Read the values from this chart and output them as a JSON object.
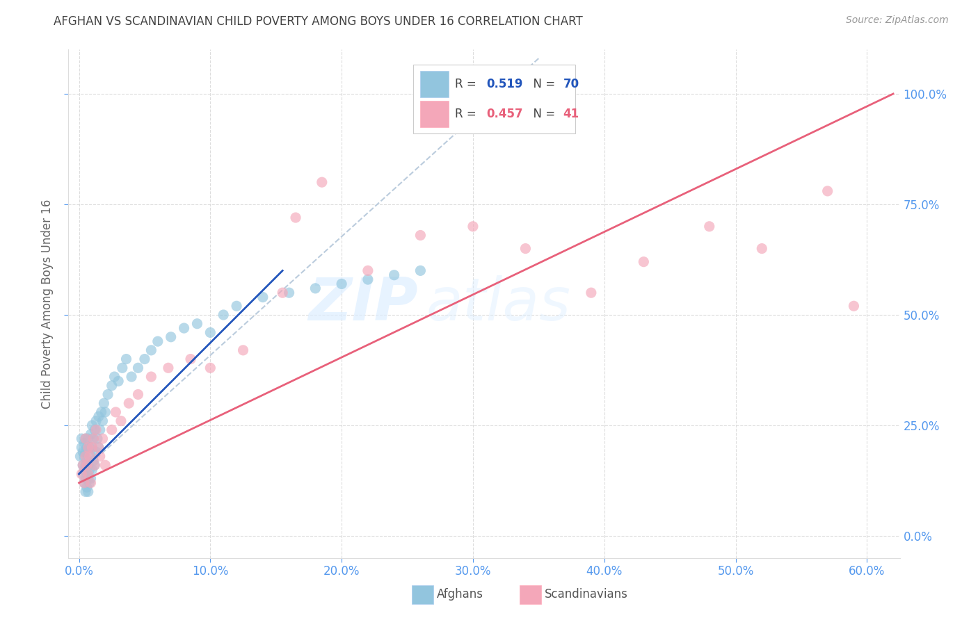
{
  "title": "AFGHAN VS SCANDINAVIAN CHILD POVERTY AMONG BOYS UNDER 16 CORRELATION CHART",
  "source": "Source: ZipAtlas.com",
  "xlabel_vals": [
    0.0,
    0.1,
    0.2,
    0.3,
    0.4,
    0.5,
    0.6
  ],
  "ylabel_vals": [
    0.0,
    0.25,
    0.5,
    0.75,
    1.0
  ],
  "xlim": [
    -0.008,
    0.625
  ],
  "ylim": [
    -0.05,
    1.1
  ],
  "legend_blue_R": "0.519",
  "legend_blue_N": "70",
  "legend_pink_R": "0.457",
  "legend_pink_N": "41",
  "label_blue": "Afghans",
  "label_pink": "Scandinavians",
  "watermark_zip": "ZIP",
  "watermark_atlas": "atlas",
  "blue_color": "#92C5DE",
  "pink_color": "#F4A7B9",
  "trendline_blue": "#2255BB",
  "trendline_pink": "#E8607A",
  "trendline_dashed": "#BBCCDD",
  "axis_label_color": "#5599EE",
  "title_color": "#444444",
  "grid_color": "#DDDDDD",
  "blue_points_x": [
    0.001,
    0.002,
    0.002,
    0.003,
    0.003,
    0.003,
    0.004,
    0.004,
    0.004,
    0.004,
    0.005,
    0.005,
    0.005,
    0.005,
    0.005,
    0.006,
    0.006,
    0.006,
    0.006,
    0.007,
    0.007,
    0.007,
    0.007,
    0.008,
    0.008,
    0.008,
    0.009,
    0.009,
    0.009,
    0.01,
    0.01,
    0.01,
    0.011,
    0.011,
    0.012,
    0.012,
    0.013,
    0.013,
    0.014,
    0.015,
    0.015,
    0.016,
    0.017,
    0.018,
    0.019,
    0.02,
    0.022,
    0.025,
    0.027,
    0.03,
    0.033,
    0.036,
    0.04,
    0.045,
    0.05,
    0.055,
    0.06,
    0.07,
    0.08,
    0.09,
    0.1,
    0.11,
    0.12,
    0.14,
    0.16,
    0.18,
    0.2,
    0.22,
    0.24,
    0.26
  ],
  "blue_points_y": [
    0.18,
    0.2,
    0.22,
    0.14,
    0.16,
    0.19,
    0.12,
    0.15,
    0.18,
    0.21,
    0.1,
    0.13,
    0.16,
    0.19,
    0.22,
    0.11,
    0.14,
    0.17,
    0.2,
    0.1,
    0.13,
    0.16,
    0.22,
    0.12,
    0.15,
    0.2,
    0.13,
    0.18,
    0.23,
    0.15,
    0.2,
    0.25,
    0.17,
    0.22,
    0.16,
    0.24,
    0.19,
    0.26,
    0.22,
    0.2,
    0.27,
    0.24,
    0.28,
    0.26,
    0.3,
    0.28,
    0.32,
    0.34,
    0.36,
    0.35,
    0.38,
    0.4,
    0.36,
    0.38,
    0.4,
    0.42,
    0.44,
    0.45,
    0.47,
    0.48,
    0.46,
    0.5,
    0.52,
    0.54,
    0.55,
    0.56,
    0.57,
    0.58,
    0.59,
    0.6
  ],
  "pink_points_x": [
    0.002,
    0.003,
    0.004,
    0.005,
    0.005,
    0.006,
    0.007,
    0.007,
    0.008,
    0.009,
    0.01,
    0.011,
    0.012,
    0.013,
    0.015,
    0.016,
    0.018,
    0.02,
    0.025,
    0.028,
    0.032,
    0.038,
    0.045,
    0.055,
    0.068,
    0.085,
    0.1,
    0.125,
    0.155,
    0.165,
    0.185,
    0.22,
    0.26,
    0.3,
    0.34,
    0.39,
    0.43,
    0.48,
    0.52,
    0.57,
    0.59
  ],
  "pink_points_y": [
    0.14,
    0.16,
    0.12,
    0.18,
    0.22,
    0.16,
    0.14,
    0.2,
    0.18,
    0.12,
    0.2,
    0.22,
    0.16,
    0.24,
    0.2,
    0.18,
    0.22,
    0.16,
    0.24,
    0.28,
    0.26,
    0.3,
    0.32,
    0.36,
    0.38,
    0.4,
    0.38,
    0.42,
    0.55,
    0.72,
    0.8,
    0.6,
    0.68,
    0.7,
    0.65,
    0.55,
    0.62,
    0.7,
    0.65,
    0.78,
    0.52
  ],
  "bg_color": "#FFFFFF",
  "blue_trendline_x": [
    0.0,
    0.155
  ],
  "blue_trendline_y": [
    0.14,
    0.6
  ],
  "pink_trendline_x": [
    0.0,
    0.62
  ],
  "pink_trendline_y": [
    0.12,
    1.0
  ],
  "dashed_trendline_x": [
    0.0,
    0.35
  ],
  "dashed_trendline_y": [
    0.14,
    1.08
  ]
}
